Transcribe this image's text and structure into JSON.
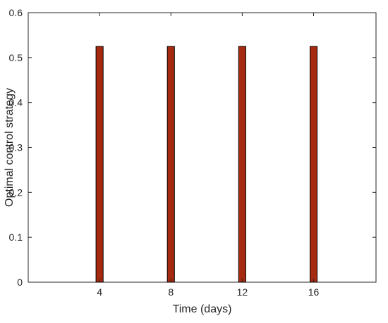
{
  "chart_data": {
    "type": "bar",
    "title": "",
    "xlabel": "Time (days)",
    "ylabel": "Optimal control strategy",
    "x": [
      4,
      8,
      12,
      16
    ],
    "values": [
      0.525,
      0.525,
      0.525,
      0.525
    ],
    "bar_width_days": 0.4,
    "xlim": [
      0,
      19.5
    ],
    "ylim": [
      0,
      0.6
    ],
    "xticks": [
      4,
      8,
      12,
      16
    ],
    "yticks": [
      0,
      0.1,
      0.2,
      0.3,
      0.4,
      0.5,
      0.6
    ],
    "xtick_labels": [
      "4",
      "8",
      "12",
      "16"
    ],
    "ytick_labels": [
      "0",
      "0.1",
      "0.2",
      "0.3",
      "0.4",
      "0.5",
      "0.6"
    ],
    "grid": false,
    "legend": "none",
    "bar_fill_color": "#a52a0f",
    "bar_edge_color": "#000000",
    "axis_color": "#262626"
  }
}
